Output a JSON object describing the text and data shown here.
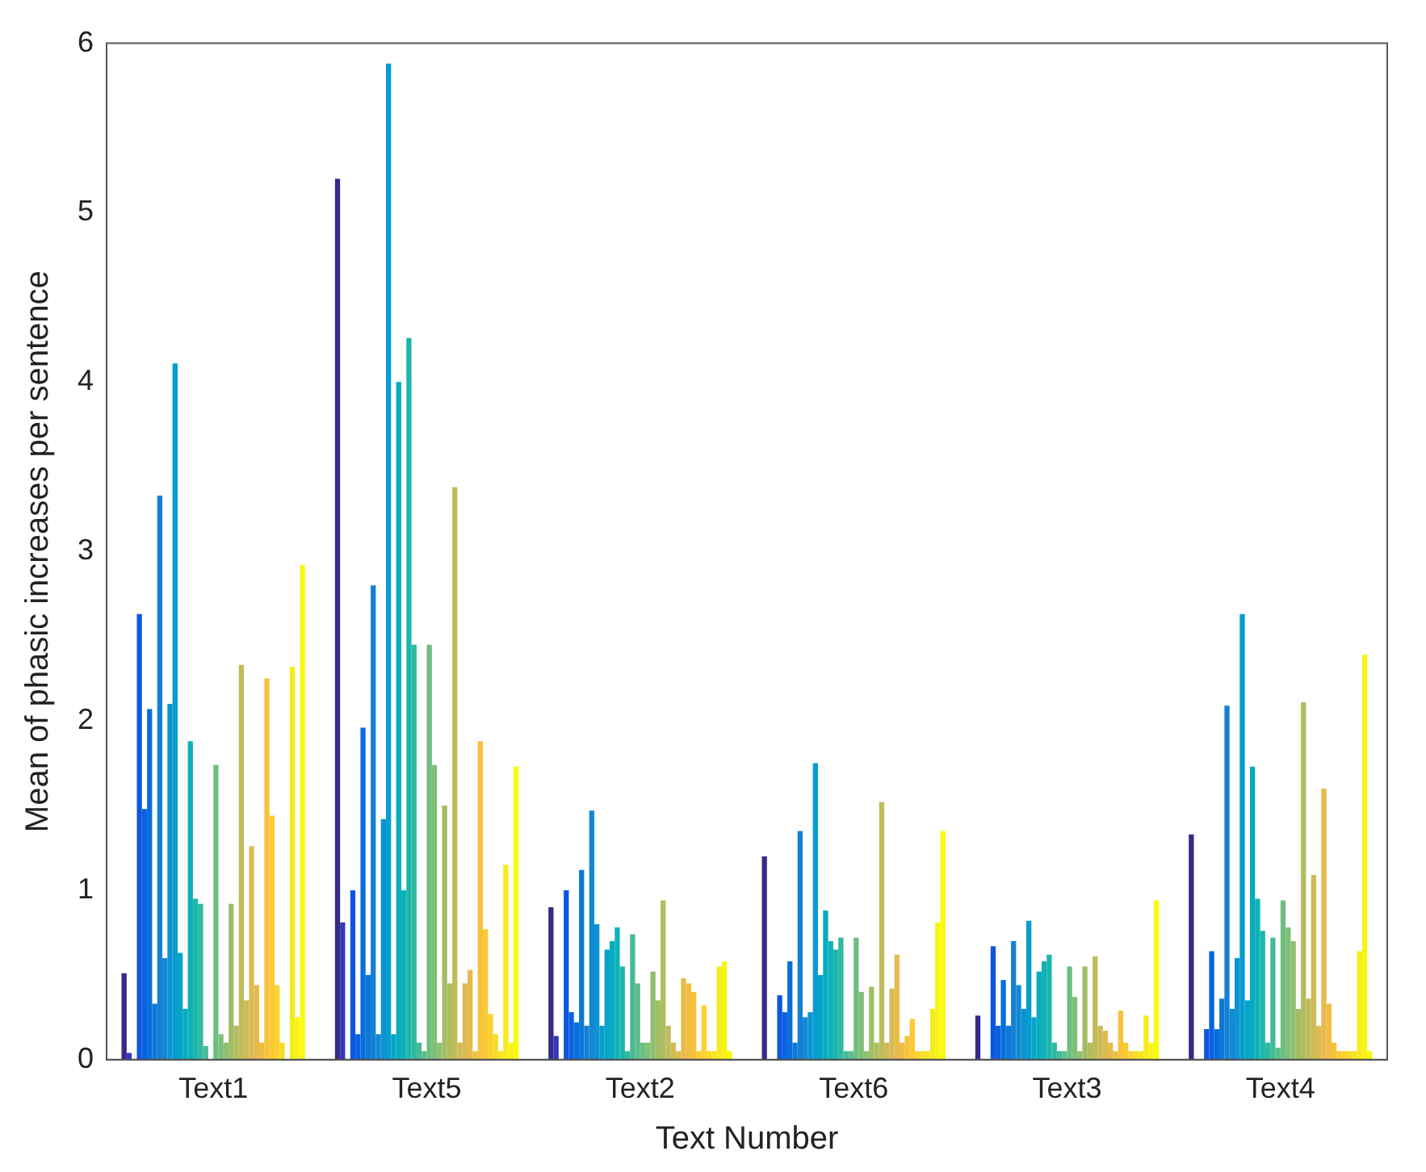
{
  "chart_data": {
    "type": "bar",
    "xlabel": "Text Number",
    "ylabel": "Mean of phasic increases per sentence",
    "categories": [
      "Text1",
      "Text5",
      "Text2",
      "Text6",
      "Text3",
      "Text4"
    ],
    "ylim": [
      0,
      6
    ],
    "yticks": [
      0,
      1,
      2,
      3,
      4,
      5,
      6
    ],
    "grid": false,
    "legend": false,
    "series": [
      {
        "color": "#352a87",
        "values": [
          0.51,
          5.2,
          0.9,
          1.2,
          0.26,
          1.33
        ]
      },
      {
        "color": "#3238b8",
        "values": [
          0.04,
          0.81,
          0.14,
          0,
          0,
          0
        ]
      },
      {
        "color": "#2046d8",
        "values": [
          0,
          0,
          0,
          0,
          0,
          0
        ]
      },
      {
        "color": "#0f55e0",
        "values": [
          2.63,
          1.0,
          1.0,
          0.38,
          0.67,
          0.18
        ]
      },
      {
        "color": "#0763e0",
        "values": [
          1.48,
          0.15,
          0.28,
          0.28,
          0.2,
          0.64
        ]
      },
      {
        "color": "#076edb",
        "values": [
          2.07,
          1.96,
          0.22,
          0.58,
          0.47,
          0.18
        ]
      },
      {
        "color": "#0f77d8",
        "values": [
          0.33,
          0.5,
          1.12,
          0.1,
          0.2,
          0.36
        ]
      },
      {
        "color": "#1480d5",
        "values": [
          3.33,
          2.8,
          0.2,
          1.35,
          0.7,
          2.09
        ]
      },
      {
        "color": "#1289d3",
        "values": [
          0.6,
          0.15,
          1.47,
          0.25,
          0.44,
          0.3
        ]
      },
      {
        "color": "#0c93d2",
        "values": [
          2.1,
          1.42,
          0.8,
          0.28,
          0.3,
          0.6
        ]
      },
      {
        "color": "#069dcf",
        "values": [
          4.11,
          5.88,
          0.2,
          1.75,
          0.82,
          2.63
        ]
      },
      {
        "color": "#04a5c9",
        "values": [
          0.63,
          0.15,
          0.65,
          0.5,
          0.25,
          0.35
        ]
      },
      {
        "color": "#05acc0",
        "values": [
          0.3,
          4.0,
          0.7,
          0.88,
          0.52,
          1.73
        ]
      },
      {
        "color": "#0fb1b6",
        "values": [
          1.88,
          1.0,
          0.78,
          0.7,
          0.58,
          0.95
        ]
      },
      {
        "color": "#1cb6ab",
        "values": [
          0.95,
          4.26,
          0.55,
          0.65,
          0.62,
          0.76
        ]
      },
      {
        "color": "#2eb9a0",
        "values": [
          0.92,
          2.45,
          0.05,
          0.72,
          0.1,
          0.1
        ]
      },
      {
        "color": "#45bb95",
        "values": [
          0.08,
          0.1,
          0.74,
          0.05,
          0.05,
          0.72
        ]
      },
      {
        "color": "#5abe89",
        "values": [
          0,
          0.05,
          0.45,
          0.05,
          0.05,
          0.07
        ]
      },
      {
        "color": "#6dbf7f",
        "values": [
          1.74,
          2.45,
          0.1,
          0.72,
          0.55,
          0.94
        ]
      },
      {
        "color": "#7fbf76",
        "values": [
          0.15,
          1.74,
          0.1,
          0.4,
          0.37,
          0.78
        ]
      },
      {
        "color": "#90bf6e",
        "values": [
          0.1,
          0.1,
          0.52,
          0.05,
          0.05,
          0.7
        ]
      },
      {
        "color": "#a1be66",
        "values": [
          0.92,
          1.5,
          0.35,
          0.43,
          0.55,
          0.3
        ]
      },
      {
        "color": "#b1bd5f",
        "values": [
          0.2,
          0.45,
          0.94,
          0.1,
          0.1,
          2.11
        ]
      },
      {
        "color": "#c0bc5a",
        "values": [
          2.33,
          3.38,
          0.2,
          1.52,
          0.61,
          0.36
        ]
      },
      {
        "color": "#cebb56",
        "values": [
          0.35,
          0.1,
          0.1,
          0.1,
          0.2,
          1.09
        ]
      },
      {
        "color": "#dbba52",
        "values": [
          1.26,
          0.45,
          0.05,
          0.42,
          0.17,
          0.2
        ]
      },
      {
        "color": "#e6ba4b",
        "values": [
          0.44,
          0.53,
          0.48,
          0.62,
          0.1,
          1.6
        ]
      },
      {
        "color": "#f0bd42",
        "values": [
          0.1,
          0.05,
          0.45,
          0.1,
          0.05,
          0.33
        ]
      },
      {
        "color": "#f8c23a",
        "values": [
          2.25,
          1.88,
          0.4,
          0.14,
          0.29,
          0.1
        ]
      },
      {
        "color": "#fcc932",
        "values": [
          1.44,
          0.77,
          0.05,
          0.24,
          0.1,
          0.05
        ]
      },
      {
        "color": "#fcd22c",
        "values": [
          0.44,
          0.27,
          0.32,
          0.05,
          0.05,
          0.05
        ]
      },
      {
        "color": "#f8db25",
        "values": [
          0.1,
          0.15,
          0.05,
          0.05,
          0.05,
          0.05
        ]
      },
      {
        "color": "#f5e41f",
        "values": [
          0,
          0.05,
          0.05,
          0.05,
          0.05,
          0.05
        ]
      },
      {
        "color": "#f5ec19",
        "values": [
          2.32,
          1.15,
          0.55,
          0.3,
          0.26,
          0.64
        ]
      },
      {
        "color": "#f7f414",
        "values": [
          0.25,
          0.1,
          0.58,
          0.81,
          0.1,
          2.39
        ]
      },
      {
        "color": "#f9fb0e",
        "values": [
          2.92,
          1.73,
          0.05,
          1.35,
          0.94,
          0.05
        ]
      }
    ]
  }
}
